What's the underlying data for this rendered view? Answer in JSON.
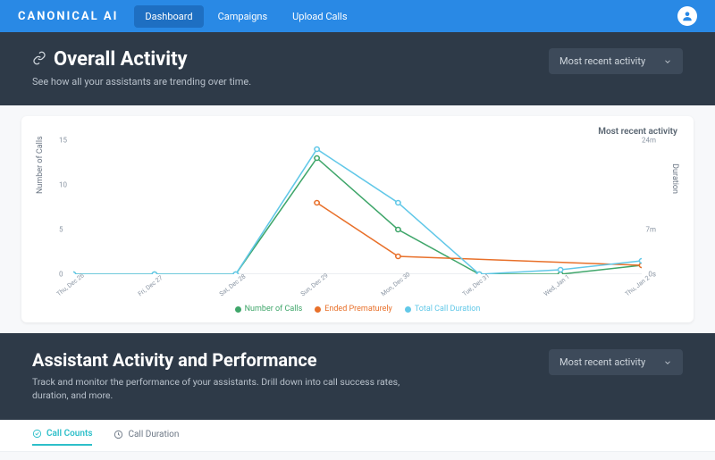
{
  "brand": "CANONICAL AI",
  "nav": {
    "items": [
      {
        "label": "Dashboard",
        "active": true
      },
      {
        "label": "Campaigns",
        "active": false
      },
      {
        "label": "Upload Calls",
        "active": false
      }
    ]
  },
  "overall": {
    "title": "Overall Activity",
    "subtitle": "See how all your assistants are trending over time.",
    "dropdown_label": "Most recent activity",
    "top_legend": "Most recent activity",
    "chart": {
      "type": "line",
      "x_categories": [
        "Thu, Dec 26",
        "Fri, Dec 27",
        "Sat, Dec 28",
        "Sun, Dec 29",
        "Mon, Dec 30",
        "Tue, Dec 31",
        "Wed, Jan 1",
        "Thu, Jan 2"
      ],
      "y_left": {
        "label": "Number of Calls",
        "min": 0,
        "max": 15,
        "ticks": [
          0,
          5,
          10,
          15
        ]
      },
      "y_right": {
        "label": "Duration",
        "ticks_labels": [
          "0s",
          "7m",
          "",
          "24m"
        ],
        "ticks_pos": [
          0,
          5,
          10,
          15
        ]
      },
      "series": [
        {
          "name": "Number of Calls",
          "color": "#3fa66a",
          "values": [
            0,
            0,
            0,
            13,
            5,
            0,
            0,
            1
          ],
          "axis": "left"
        },
        {
          "name": "Ended Prematurely",
          "color": "#e8702a",
          "values": [
            null,
            null,
            null,
            8,
            2,
            null,
            null,
            1
          ],
          "axis": "left"
        },
        {
          "name": "Total Call Duration",
          "color": "#62c8e8",
          "values": [
            0,
            0,
            0,
            14,
            8,
            0,
            0.5,
            1.5
          ],
          "axis": "left"
        }
      ],
      "background_color": "#ffffff",
      "grid_color": "#eef1f4",
      "marker_style": "circle",
      "line_width": 1.5
    }
  },
  "assistant": {
    "title": "Assistant Activity and Performance",
    "subtitle": "Track and monitor the performance of your assistants. Drill down into call success rates, duration, and more.",
    "dropdown_label": "Most recent activity",
    "tabs": [
      {
        "label": "Call Counts",
        "active": true,
        "icon": "check-circle"
      },
      {
        "label": "Call Duration",
        "active": false,
        "icon": "clock"
      }
    ]
  },
  "colors": {
    "topbar": "#2989e5",
    "hero_bg": "#2e3a48",
    "accent_teal": "#2dbfc9"
  }
}
